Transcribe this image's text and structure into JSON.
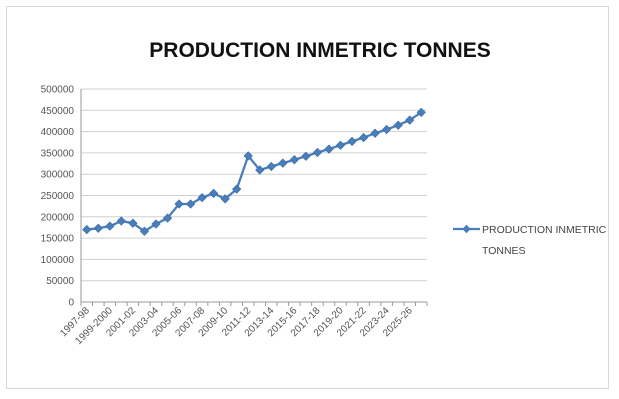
{
  "chart_data": {
    "type": "line",
    "title": "PRODUCTION INMETRIC TONNES",
    "xlabel": "",
    "ylabel": "",
    "ylim": [
      0,
      500000
    ],
    "yticks": [
      0,
      50000,
      100000,
      150000,
      200000,
      250000,
      300000,
      350000,
      400000,
      450000,
      500000
    ],
    "grid": true,
    "legend_position": "right",
    "categories": [
      "1997-98",
      "1998-99",
      "1999-2000",
      "2000-01",
      "2001-02",
      "2002-03",
      "2003-04",
      "2004-05",
      "2005-06",
      "2006-07",
      "2007-08",
      "2008-09",
      "2009-10",
      "2010-11",
      "2011-12",
      "2012-13",
      "2013-14",
      "2014-15",
      "2015-16",
      "2016-17",
      "2017-18",
      "2018-19",
      "2019-20",
      "2020-21",
      "2021-22",
      "2022-23",
      "2023-24",
      "2024-25",
      "2025-26",
      "2026-27"
    ],
    "visible_xtick_labels": [
      "1997-98",
      "1999-2000",
      "2001-02",
      "2003-04",
      "2005-06",
      "2007-08",
      "2009-10",
      "2011-12",
      "2013-14",
      "2015-16",
      "2017-18",
      "2019-20",
      "2021-22",
      "2023-24",
      "2025-26"
    ],
    "series": [
      {
        "name": "PRODUCTION INMETRIC TONNES",
        "color": "#4a7ebb",
        "marker": "diamond",
        "values": [
          170000,
          173000,
          178000,
          190000,
          185000,
          166000,
          183000,
          197000,
          230000,
          230000,
          245000,
          255000,
          242000,
          265000,
          343000,
          310000,
          318000,
          326000,
          334000,
          342000,
          351000,
          359000,
          368000,
          377000,
          386000,
          396000,
          405000,
          415000,
          427000,
          445000
        ]
      }
    ]
  }
}
